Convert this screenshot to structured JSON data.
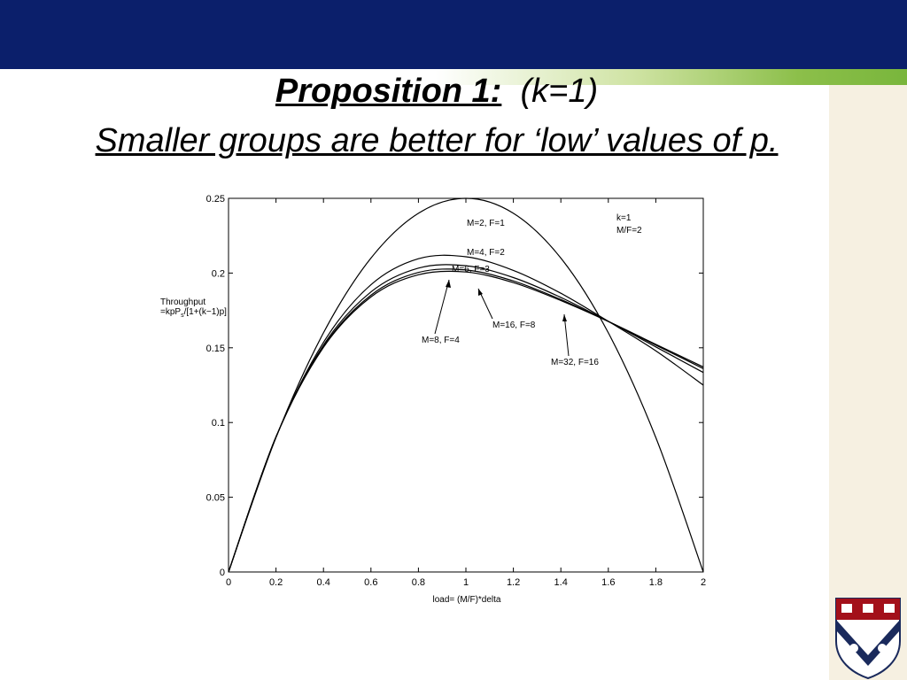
{
  "slide": {
    "title_bold": "Proposition 1:",
    "title_rest": "(k=1)",
    "subtitle": "Smaller groups are better for ‘low’ values of p."
  },
  "chart_data": {
    "type": "line",
    "xlabel": "load= (M/F)*delta",
    "ylabel_line1": "Throughput",
    "ylabel_line2": "=kpP",
    "ylabel_sub": "s",
    "ylabel_line2b": "/[1+(k−1)p]",
    "xlim": [
      0,
      2
    ],
    "ylim": [
      0,
      0.25
    ],
    "xticks": [
      "0",
      "0.2",
      "0.4",
      "0.6",
      "0.8",
      "1",
      "1.2",
      "1.4",
      "1.6",
      "1.8",
      "2"
    ],
    "yticks": [
      "0",
      "0.05",
      "0.1",
      "0.15",
      "0.2",
      "0.25"
    ],
    "grid": false,
    "legend_text": [
      "k=1",
      "M/F=2"
    ],
    "x": [
      0,
      0.2,
      0.4,
      0.6,
      0.8,
      1.0,
      1.2,
      1.4,
      1.6,
      1.8,
      2.0
    ],
    "series": [
      {
        "name": "M=2, F=1",
        "values": [
          0,
          0.09,
          0.16,
          0.21,
          0.24,
          0.25,
          0.24,
          0.21,
          0.16,
          0.09,
          0
        ]
      },
      {
        "name": "M=4, F=2",
        "values": [
          0,
          0.0902,
          0.1536,
          0.1922,
          0.2096,
          0.2109,
          0.2018,
          0.1865,
          0.1677,
          0.148,
          0.125
        ]
      },
      {
        "name": "M=8, F=4",
        "values": [
          0,
          0.0903,
          0.1518,
          0.1874,
          0.2033,
          0.2049,
          0.197,
          0.1837,
          0.1677,
          0.1506,
          0.1335
        ]
      },
      {
        "name": "M=16, F=8",
        "values": [
          0,
          0.0904,
          0.1508,
          0.1852,
          0.2004,
          0.2021,
          0.1947,
          0.1823,
          0.1676,
          0.1518,
          0.1361
        ]
      },
      {
        "name": "M=32, F=16",
        "values": [
          0,
          0.0904,
          0.1503,
          0.184,
          0.1989,
          0.2007,
          0.1936,
          0.1816,
          0.1676,
          0.1523,
          0.1372
        ]
      }
    ],
    "annotations": [
      "M=2, F=1",
      "M=4, F=2",
      "M=6, F=3",
      "M=8, F=4",
      "M=16, F=8",
      "M=32, F=16"
    ]
  }
}
